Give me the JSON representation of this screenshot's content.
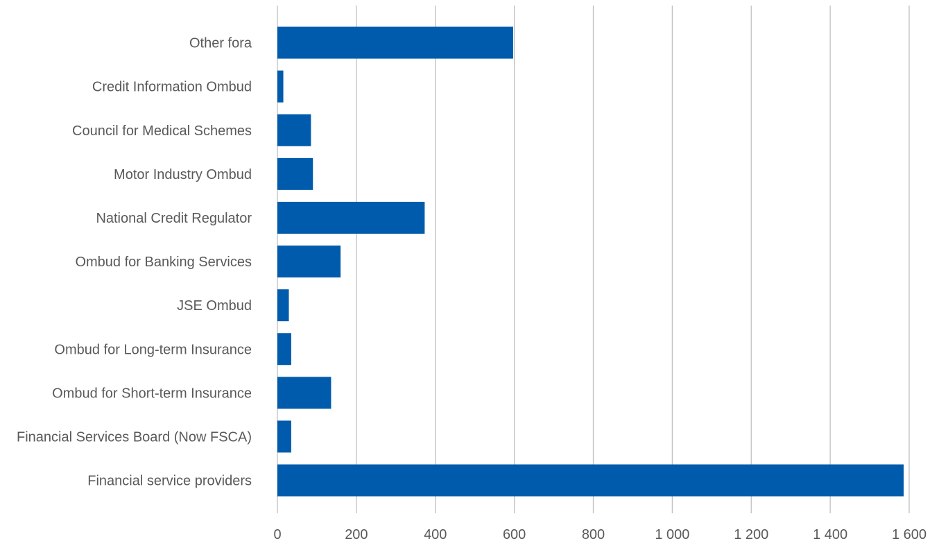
{
  "chart_data": {
    "type": "bar",
    "orientation": "horizontal",
    "categories": [
      "Other fora",
      "Credit Information Ombud",
      "Council for Medical Schemes",
      "Motor Industry Ombud",
      "National Credit Regulator",
      "Ombud for Banking Services",
      "JSE Ombud",
      "Ombud for Long-term Insurance",
      "Ombud for Short-term Insurance",
      "Financial Services Board (Now FSCA)",
      "Financial service providers"
    ],
    "values": [
      597,
      15,
      85,
      90,
      373,
      160,
      29,
      35,
      136,
      35,
      1586
    ],
    "xlim": [
      0,
      1600
    ],
    "xticks": [
      0,
      200,
      400,
      600,
      800,
      1000,
      1200,
      1400,
      1600
    ],
    "xtick_labels": [
      "0",
      "200",
      "400",
      "600",
      "800",
      "1 000",
      "1 200",
      "1 400",
      "1 600"
    ],
    "title": "",
    "xlabel": "",
    "ylabel": "",
    "grid": "vertical",
    "legend": "none",
    "bar_color": "#005bac",
    "grid_color": "#bfbfbf",
    "text_color": "#595959"
  }
}
